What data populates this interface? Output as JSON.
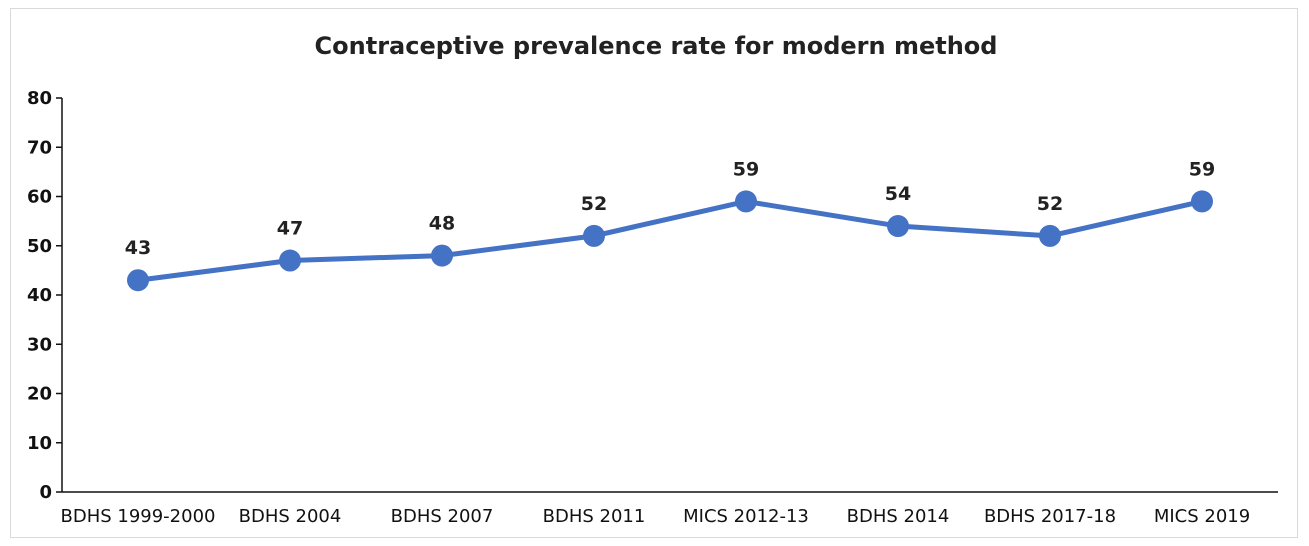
{
  "chart_data": {
    "type": "line",
    "title": "Contraceptive prevalence rate for modern method",
    "xlabel": "",
    "ylabel": "",
    "categories": [
      "BDHS 1999-2000",
      "BDHS 2004",
      "BDHS 2007",
      "BDHS 2011",
      "MICS 2012-13",
      "BDHS 2014",
      "BDHS 2017-18",
      "MICS 2019"
    ],
    "series": [
      {
        "values": [
          43,
          47,
          48,
          52,
          59,
          54,
          52,
          59
        ],
        "data_labels": [
          "43",
          "47",
          "48",
          "52",
          "59",
          "54",
          "52",
          "59"
        ],
        "color": "#4472c4"
      }
    ],
    "ylim": [
      0,
      80
    ],
    "yticks": [
      "0",
      "10",
      "20",
      "30",
      "40",
      "50",
      "60",
      "70",
      "80"
    ],
    "grid": false,
    "legend": "none"
  }
}
